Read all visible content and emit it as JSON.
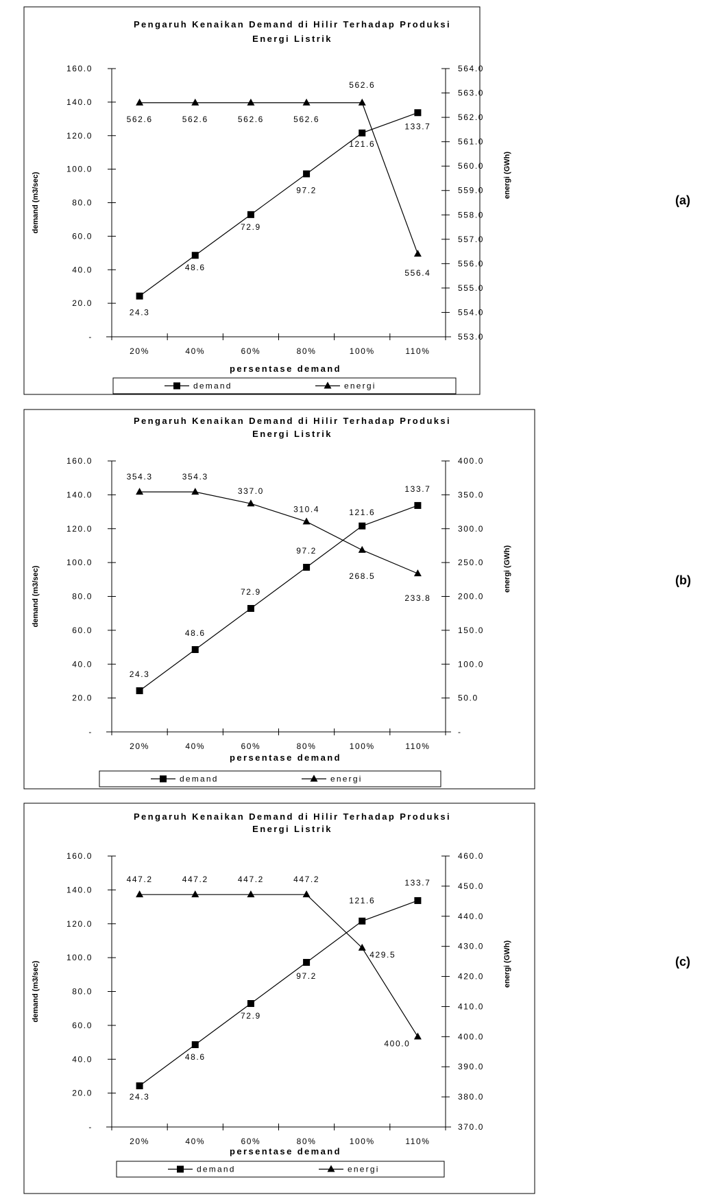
{
  "panel_labels": [
    "(a)",
    "(b)",
    "(c)"
  ],
  "chart_data": [
    {
      "type": "line",
      "title": "Pengaruh Kenaikan Demand di Hilir Terhadap Produksi Energi Listrik",
      "title_lines": [
        "Pengaruh Kenaikan Demand di Hilir Terhadap Produksi",
        "Energi Listrik"
      ],
      "xlabel": "persentase demand",
      "ylabel": "demand (m3/sec)",
      "y2label": "energi (GWh)",
      "categories": [
        "20%",
        "40%",
        "60%",
        "80%",
        "100%",
        "110%"
      ],
      "ylim": [
        0,
        160
      ],
      "y2lim": [
        553,
        564
      ],
      "yticks": [
        "-",
        "20.0",
        "40.0",
        "60.0",
        "80.0",
        "100.0",
        "120.0",
        "140.0",
        "160.0"
      ],
      "y2ticks": [
        "553.0",
        "554.0",
        "555.0",
        "556.0",
        "557.0",
        "558.0",
        "559.0",
        "560.0",
        "561.0",
        "562.0",
        "563.0",
        "564.0"
      ],
      "series": [
        {
          "name": "demand",
          "axis": "left",
          "marker": "square",
          "values": [
            24.3,
            48.6,
            72.9,
            97.2,
            121.6,
            133.7
          ],
          "labels": [
            "24.3",
            "48.6",
            "72.9",
            "97.2",
            "121.6",
            "133.7"
          ]
        },
        {
          "name": "energi",
          "axis": "right",
          "marker": "triangle",
          "values": [
            562.6,
            562.6,
            562.6,
            562.6,
            562.6,
            556.4
          ],
          "labels": [
            "562.6",
            "562.6",
            "562.6",
            "562.6",
            "562.6",
            "556.4"
          ]
        }
      ],
      "legend": "bottom"
    },
    {
      "type": "line",
      "title": "Pengaruh Kenaikan Demand di Hilir Terhadap Produksi Energi Listrik",
      "title_lines": [
        "Pengaruh Kenaikan Demand di Hilir Terhadap Produksi",
        "Energi Listrik"
      ],
      "xlabel": "persentase demand",
      "ylabel": "demand (m3/sec)",
      "y2label": "energi (GWh)",
      "categories": [
        "20%",
        "40%",
        "60%",
        "80%",
        "100%",
        "110%"
      ],
      "ylim": [
        0,
        160
      ],
      "y2lim": [
        0,
        400
      ],
      "yticks": [
        "-",
        "20.0",
        "40.0",
        "60.0",
        "80.0",
        "100.0",
        "120.0",
        "140.0",
        "160.0"
      ],
      "y2ticks": [
        "-",
        "50.0",
        "100.0",
        "150.0",
        "200.0",
        "250.0",
        "300.0",
        "350.0",
        "400.0"
      ],
      "series": [
        {
          "name": "demand",
          "axis": "left",
          "marker": "square",
          "values": [
            24.3,
            48.6,
            72.9,
            97.2,
            121.6,
            133.7
          ],
          "labels": [
            "24.3",
            "48.6",
            "72.9",
            "97.2",
            "121.6",
            "133.7"
          ]
        },
        {
          "name": "energi",
          "axis": "right",
          "marker": "triangle",
          "values": [
            354.3,
            354.3,
            337.0,
            310.4,
            268.5,
            233.8
          ],
          "labels": [
            "354.3",
            "354.3",
            "337.0",
            "310.4",
            "268.5",
            "233.8"
          ]
        }
      ],
      "legend": "bottom"
    },
    {
      "type": "line",
      "title": "Pengaruh Kenaikan Demand di Hilir Terhadap Produksi Energi Listrik",
      "title_lines": [
        "Pengaruh Kenaikan Demand di Hilir Terhadap Produksi",
        "Energi Listrik"
      ],
      "xlabel": "persentase demand",
      "ylabel": "demand (m3/sec)",
      "y2label": "energi (GWh)",
      "categories": [
        "20%",
        "40%",
        "60%",
        "80%",
        "100%",
        "110%"
      ],
      "ylim": [
        0,
        160
      ],
      "y2lim": [
        370,
        460
      ],
      "yticks": [
        "-",
        "20.0",
        "40.0",
        "60.0",
        "80.0",
        "100.0",
        "120.0",
        "140.0",
        "160.0"
      ],
      "y2ticks": [
        "370.0",
        "380.0",
        "390.0",
        "400.0",
        "410.0",
        "420.0",
        "430.0",
        "440.0",
        "450.0",
        "460.0"
      ],
      "series": [
        {
          "name": "demand",
          "axis": "left",
          "marker": "square",
          "values": [
            24.3,
            48.6,
            72.9,
            97.2,
            121.6,
            133.7
          ],
          "labels": [
            "24.3",
            "48.6",
            "72.9",
            "97.2",
            "121.6",
            "133.7"
          ]
        },
        {
          "name": "energi",
          "axis": "right",
          "marker": "triangle",
          "values": [
            447.2,
            447.2,
            447.2,
            447.2,
            429.5,
            400.0
          ],
          "labels": [
            "447.2",
            "447.2",
            "447.2",
            "447.2",
            "429.5",
            "400.0"
          ]
        }
      ],
      "legend": "bottom"
    }
  ]
}
